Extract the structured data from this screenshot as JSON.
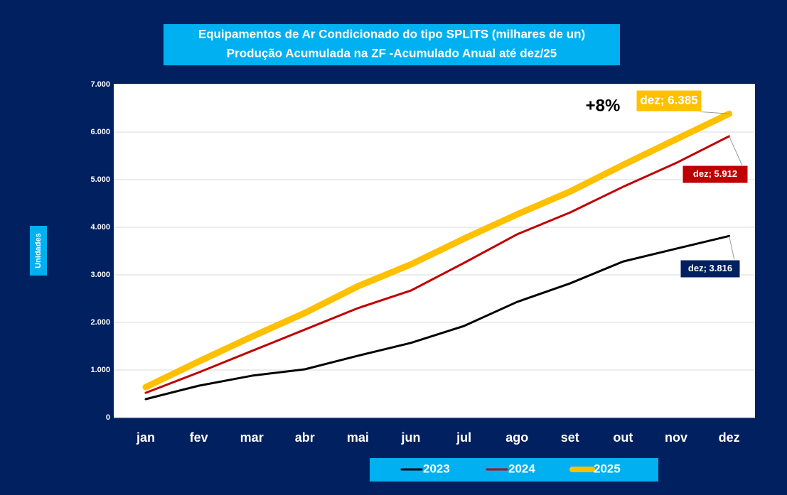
{
  "chart_data": {
    "type": "line",
    "title": "Equipamentos de Ar Condicionado do tipo SPLITS (milhares de un)",
    "subtitle": "Produção Acumulada na ZF  -Acumulado Anual até dez/25",
    "y_label": "Unidades",
    "annotation": "+8%",
    "categories": [
      "jan",
      "fev",
      "mar",
      "abr",
      "mai",
      "jun",
      "jul",
      "ago",
      "set",
      "out",
      "nov",
      "dez"
    ],
    "series": [
      {
        "name": "2023",
        "color": "#000000",
        "values": [
          388,
          670,
          880,
          1015,
          1300,
          1570,
          1925,
          2430,
          2820,
          3280,
          3550,
          3816
        ],
        "value_labels": [
          null,
          null,
          null,
          null,
          null,
          null,
          null,
          null,
          null,
          null,
          null,
          "dez; 3.816"
        ]
      },
      {
        "name": "2024",
        "color": "#c00000",
        "values": [
          520,
          950,
          1400,
          1850,
          2300,
          2670,
          3250,
          3850,
          4310,
          4850,
          5350,
          5912
        ],
        "value_labels": [
          null,
          null,
          null,
          null,
          null,
          null,
          null,
          null,
          null,
          null,
          null,
          "dez; 5.912"
        ]
      },
      {
        "name": "2025",
        "color": "#ffc000",
        "values": [
          640,
          1180,
          1700,
          2200,
          2760,
          3220,
          3760,
          4270,
          4750,
          5310,
          5850,
          6385
        ],
        "value_labels": [
          null,
          null,
          null,
          null,
          null,
          null,
          null,
          null,
          null,
          null,
          null,
          "dez; 6.385"
        ]
      }
    ],
    "ylim": [
      0,
      7000
    ],
    "yticks": [
      0,
      {
        "value": 1000,
        "label": "1.000"
      },
      {
        "value": 2000,
        "label": "2.000"
      },
      {
        "value": 3000,
        "label": "3.000"
      },
      {
        "value": 4000,
        "label": "4.000"
      },
      {
        "value": 5000,
        "label": "5.000"
      },
      {
        "value": 6000,
        "label": "6.000"
      },
      {
        "value": 7000,
        "label": "7.000"
      }
    ],
    "grid": true
  }
}
